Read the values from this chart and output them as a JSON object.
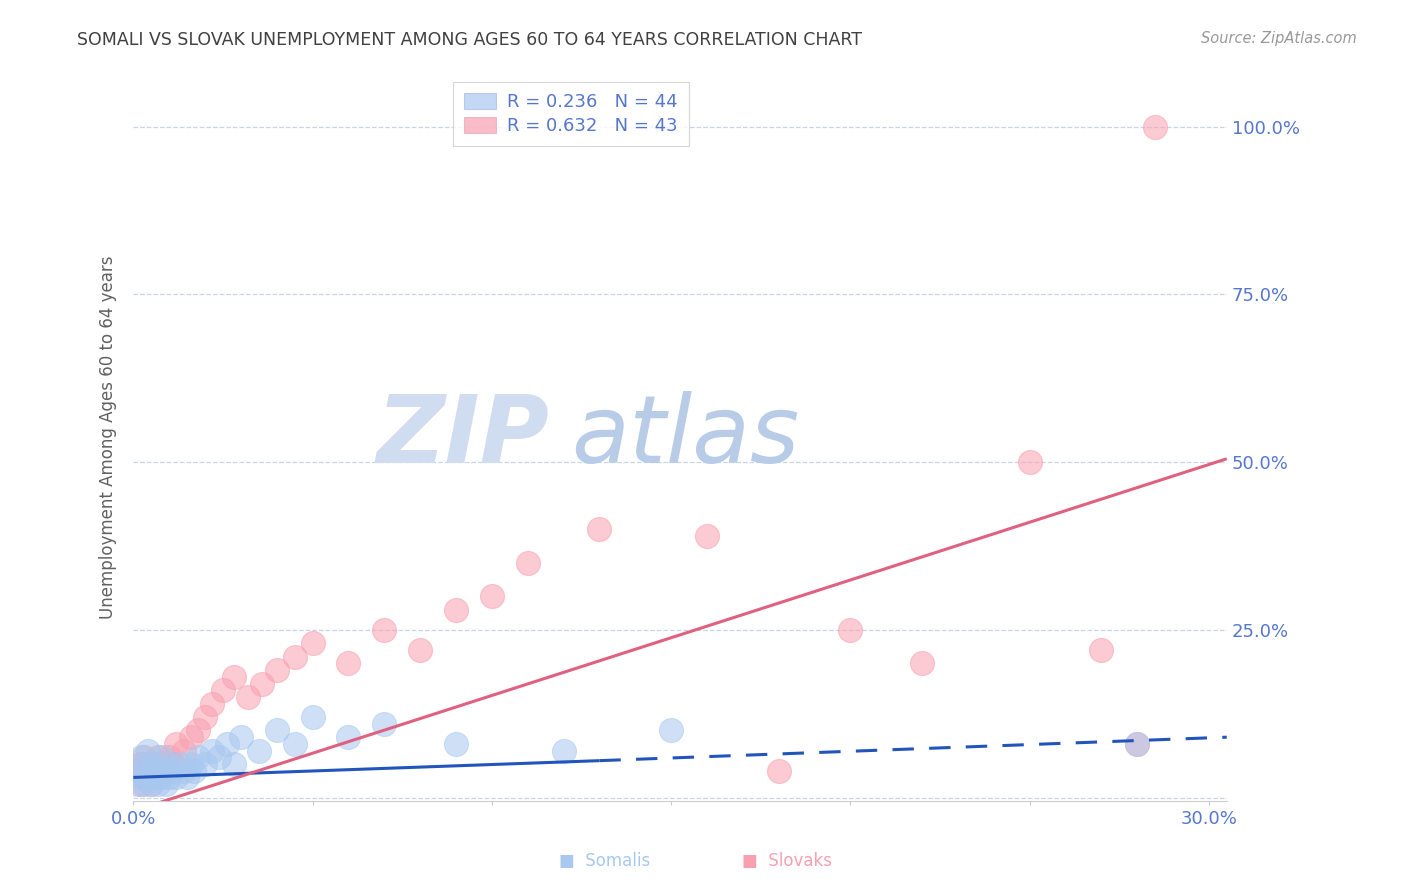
{
  "title": "SOMALI VS SLOVAK UNEMPLOYMENT AMONG AGES 60 TO 64 YEARS CORRELATION CHART",
  "source": "Source: ZipAtlas.com",
  "ylabel": "Unemployment Among Ages 60 to 64 years",
  "xlim": [
    0.0,
    0.305
  ],
  "ylim": [
    -0.005,
    1.08
  ],
  "somali_R": 0.236,
  "somali_N": 44,
  "slovak_R": 0.632,
  "slovak_N": 43,
  "somali_color": "#A8C8F0",
  "slovak_color": "#F8A0B0",
  "somali_line_color": "#2255BB",
  "slovak_line_color": "#E06080",
  "watermark_color": "#D0DCF0",
  "background_color": "#FFFFFF",
  "grid_color": "#C8D4E8",
  "title_color": "#404040",
  "tick_label_color": "#5577CC",
  "ylabel_color": "#606060",
  "somali_x": [
    0.001,
    0.001,
    0.002,
    0.002,
    0.003,
    0.003,
    0.004,
    0.004,
    0.005,
    0.005,
    0.006,
    0.006,
    0.007,
    0.007,
    0.008,
    0.008,
    0.009,
    0.009,
    0.01,
    0.01,
    0.011,
    0.012,
    0.013,
    0.014,
    0.015,
    0.016,
    0.017,
    0.018,
    0.02,
    0.022,
    0.024,
    0.026,
    0.028,
    0.03,
    0.035,
    0.04,
    0.045,
    0.05,
    0.06,
    0.07,
    0.09,
    0.12,
    0.15,
    0.28
  ],
  "somali_y": [
    0.02,
    0.04,
    0.03,
    0.06,
    0.02,
    0.05,
    0.03,
    0.07,
    0.02,
    0.04,
    0.03,
    0.05,
    0.02,
    0.04,
    0.03,
    0.06,
    0.02,
    0.04,
    0.03,
    0.05,
    0.04,
    0.03,
    0.05,
    0.04,
    0.03,
    0.05,
    0.04,
    0.06,
    0.05,
    0.07,
    0.06,
    0.08,
    0.05,
    0.09,
    0.07,
    0.1,
    0.08,
    0.12,
    0.09,
    0.11,
    0.08,
    0.07,
    0.1,
    0.08
  ],
  "slovak_x": [
    0.001,
    0.002,
    0.002,
    0.003,
    0.003,
    0.004,
    0.005,
    0.005,
    0.006,
    0.007,
    0.007,
    0.008,
    0.009,
    0.01,
    0.011,
    0.012,
    0.014,
    0.016,
    0.018,
    0.02,
    0.022,
    0.025,
    0.028,
    0.032,
    0.036,
    0.04,
    0.045,
    0.05,
    0.06,
    0.07,
    0.08,
    0.09,
    0.1,
    0.11,
    0.13,
    0.16,
    0.18,
    0.2,
    0.22,
    0.25,
    0.27,
    0.28,
    0.285
  ],
  "slovak_y": [
    0.04,
    0.02,
    0.05,
    0.03,
    0.06,
    0.04,
    0.02,
    0.05,
    0.04,
    0.03,
    0.06,
    0.05,
    0.04,
    0.06,
    0.05,
    0.08,
    0.07,
    0.09,
    0.1,
    0.12,
    0.14,
    0.16,
    0.18,
    0.15,
    0.17,
    0.19,
    0.21,
    0.23,
    0.2,
    0.25,
    0.22,
    0.28,
    0.3,
    0.35,
    0.4,
    0.39,
    0.04,
    0.25,
    0.2,
    0.5,
    0.22,
    0.08,
    1.0
  ],
  "som_line_x0": 0.0,
  "som_line_x_solid_end": 0.13,
  "som_line_x_dash_end": 0.305,
  "som_line_y0": 0.03,
  "som_line_y_solid_end": 0.055,
  "som_line_y_dash_end": 0.09,
  "slk_line_x0": 0.0,
  "slk_line_x1": 0.305,
  "slk_line_y0": -0.02,
  "slk_line_y1": 0.505
}
